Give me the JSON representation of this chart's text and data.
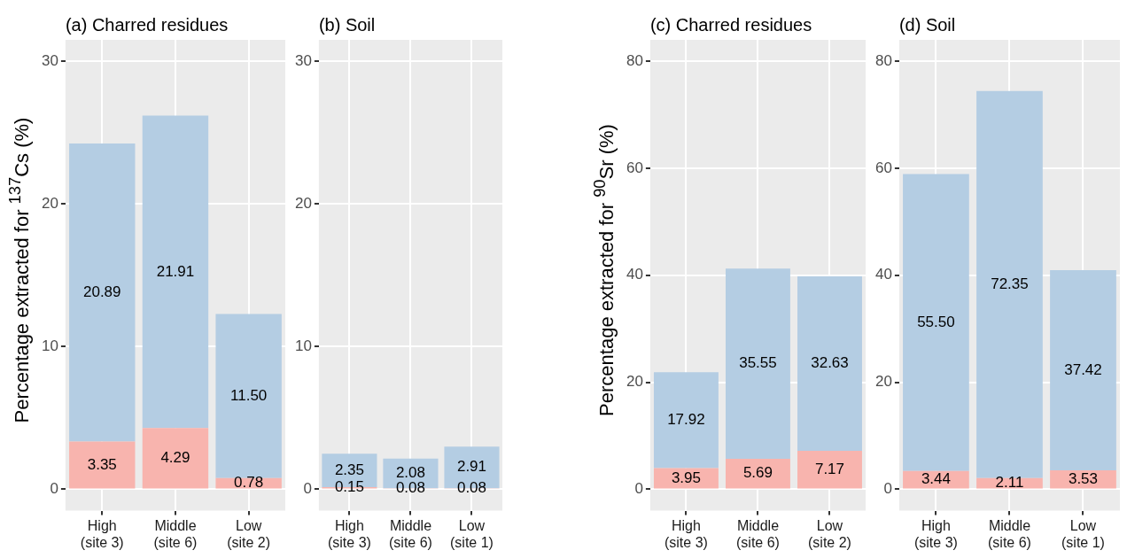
{
  "chart_data": [
    {
      "type": "bar",
      "stacked": true,
      "title": "(a) Charred residues",
      "ylabel": "Percentage extracted for $^{137}$Cs (%)",
      "categories": [
        "High\n(site 3)",
        "Middle\n(site 6)",
        "Low\n(site 2)"
      ],
      "series": [
        {
          "color": "#f8b4ae",
          "values": [
            3.35,
            4.29,
            0.78
          ],
          "value_labels": [
            "3.35",
            "4.29",
            "0.78"
          ]
        },
        {
          "color": "#b4cde3",
          "values": [
            20.89,
            21.91,
            11.5
          ],
          "value_labels": [
            "20.89",
            "21.91",
            "11.50"
          ]
        }
      ],
      "ylim": [
        -1.5,
        31.5
      ],
      "yticks": [
        0,
        10,
        20,
        30
      ],
      "grid": true,
      "legend": false
    },
    {
      "type": "bar",
      "stacked": true,
      "title": "(b) Soil",
      "categories": [
        "High\n(site 3)",
        "Middle\n(site 6)",
        "Low\n(site 1)"
      ],
      "series": [
        {
          "color": "#f8b4ae",
          "values": [
            0.15,
            0.08,
            0.08
          ],
          "value_labels": [
            "0.15",
            "0.08",
            "0.08"
          ]
        },
        {
          "color": "#b4cde3",
          "values": [
            2.35,
            2.08,
            2.91
          ],
          "value_labels": [
            "2.35",
            "2.08",
            "2.91"
          ]
        }
      ],
      "ylim": [
        -1.5,
        31.5
      ],
      "yticks": [
        0,
        10,
        20,
        30
      ],
      "grid": true,
      "legend": false
    },
    {
      "type": "bar",
      "stacked": true,
      "title": "(c) Charred residues",
      "ylabel": "Percentage extracted for $^{90}$Sr (%)",
      "categories": [
        "High\n(site 3)",
        "Middle\n(site 6)",
        "Low\n(site 2)"
      ],
      "series": [
        {
          "color": "#f8b4ae",
          "values": [
            3.95,
            5.69,
            7.17
          ],
          "value_labels": [
            "3.95",
            "5.69",
            "7.17"
          ]
        },
        {
          "color": "#b4cde3",
          "values": [
            17.92,
            35.55,
            32.63
          ],
          "value_labels": [
            "17.92",
            "35.55",
            "32.63"
          ]
        }
      ],
      "ylim": [
        -4,
        84
      ],
      "yticks": [
        0,
        20,
        40,
        60,
        80
      ],
      "grid": true,
      "legend": false
    },
    {
      "type": "bar",
      "stacked": true,
      "title": "(d) Soil",
      "categories": [
        "High\n(site 3)",
        "Middle\n(site 6)",
        "Low\n(site 1)"
      ],
      "series": [
        {
          "color": "#f8b4ae",
          "values": [
            3.44,
            2.11,
            3.53
          ],
          "value_labels": [
            "3.44",
            "2.11",
            "3.53"
          ]
        },
        {
          "color": "#b4cde3",
          "values": [
            55.5,
            72.35,
            37.42
          ],
          "value_labels": [
            "55.50",
            "72.35",
            "37.42"
          ]
        }
      ],
      "ylim": [
        -4,
        84
      ],
      "yticks": [
        0,
        20,
        40,
        60,
        80
      ],
      "grid": true,
      "legend": false
    }
  ]
}
